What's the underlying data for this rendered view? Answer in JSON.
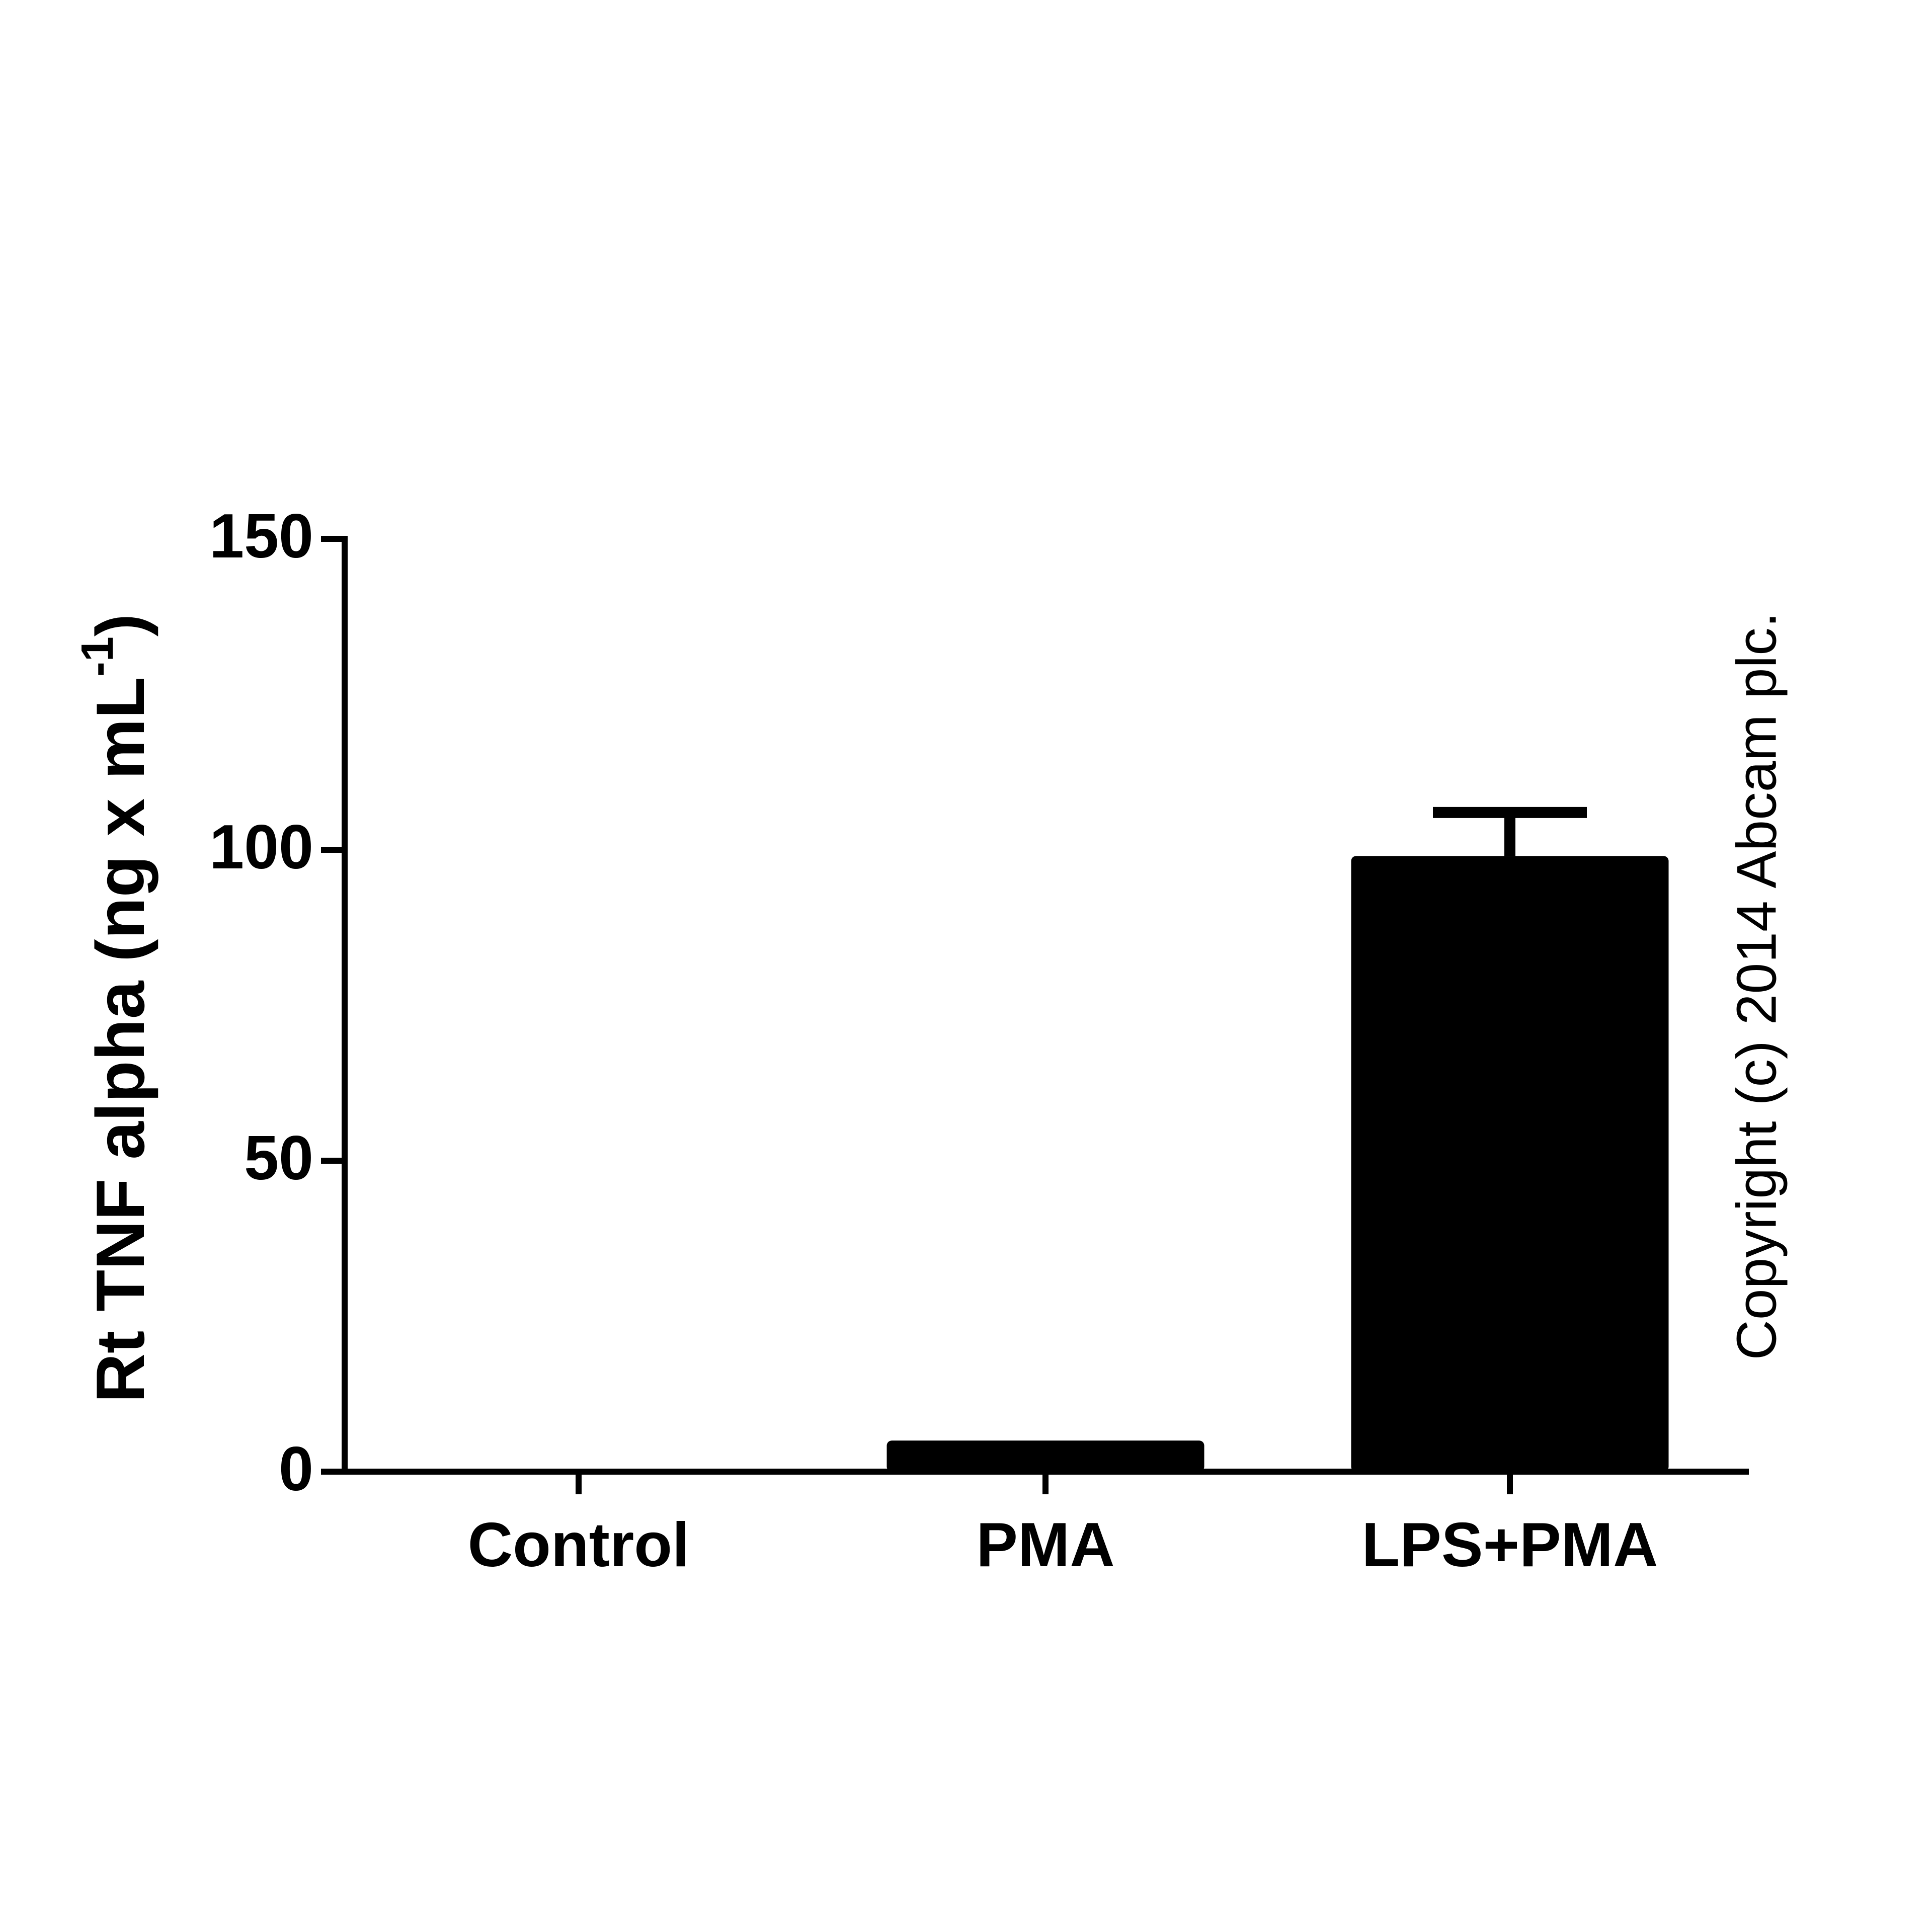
{
  "chart_data": {
    "type": "bar",
    "ylabel": "Rt TNF alpha (ng x mL",
    "ylabel_superscript": "-1",
    "ylabel_close": ")",
    "categories": [
      "Control",
      "PMA",
      "LPS+PMA"
    ],
    "values": [
      0,
      5,
      99
    ],
    "errors": [
      null,
      null,
      7
    ],
    "color": "#000000",
    "ylim": [
      0,
      150
    ],
    "yticks": [
      0,
      50,
      100,
      150
    ],
    "annotation": "Copyright (c) 2014 Abcam plc."
  }
}
